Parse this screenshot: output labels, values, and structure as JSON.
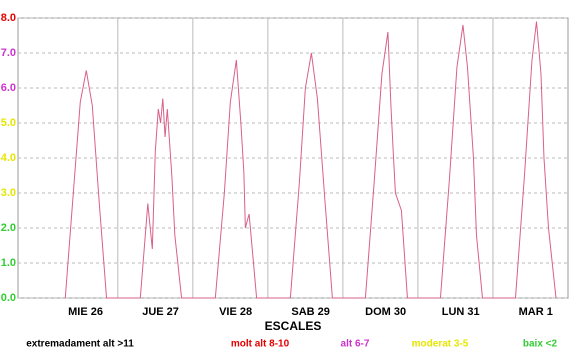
{
  "chart_data": {
    "type": "line",
    "xlabel": "ESCALES",
    "xlim": [
      -0.33,
      7
    ],
    "xticks": [
      {
        "value": 0.57,
        "label": "MIE 26"
      },
      {
        "value": 1.57,
        "label": "JUE 27"
      },
      {
        "value": 2.57,
        "label": "VIE 28"
      },
      {
        "value": 3.57,
        "label": "SAB 29"
      },
      {
        "value": 4.57,
        "label": "DOM 30"
      },
      {
        "value": 5.57,
        "label": "LUN 31"
      },
      {
        "value": 6.57,
        "label": "MAR 1"
      }
    ],
    "xgrid": [
      1,
      2,
      3,
      4,
      5,
      6
    ],
    "ylim": [
      0,
      8
    ],
    "yticks": [
      {
        "value": 0,
        "label": "0.0"
      },
      {
        "value": 1,
        "label": "1.0"
      },
      {
        "value": 2,
        "label": "2.0"
      },
      {
        "value": 3,
        "label": "3.0"
      },
      {
        "value": 4,
        "label": "4.0"
      },
      {
        "value": 5,
        "label": "5.0"
      },
      {
        "value": 6,
        "label": "6.0"
      },
      {
        "value": 7,
        "label": "7.0"
      },
      {
        "value": 8,
        "label": "8.0"
      }
    ],
    "ytick_colors": [
      "#33cc33",
      "#33cc33",
      "#33cc33",
      "#e6e600",
      "#e6e600",
      "#e6e600",
      "#cc33cc",
      "#cc33cc",
      "#e60000"
    ],
    "grid": true,
    "series": [
      {
        "color": "#d8608a",
        "x": [
          0.3,
          0.4,
          0.5,
          0.58,
          0.66,
          0.75,
          0.85,
          1.3,
          1.4,
          1.46,
          1.5,
          1.54,
          1.57,
          1.6,
          1.63,
          1.66,
          1.72,
          1.76,
          1.85,
          2.3,
          2.42,
          2.5,
          2.58,
          2.64,
          2.68,
          2.7,
          2.75,
          2.85,
          3.3,
          3.42,
          3.5,
          3.58,
          3.66,
          3.76,
          3.86,
          4.3,
          4.42,
          4.52,
          4.6,
          4.64,
          4.67,
          4.7,
          4.78,
          4.86,
          5.3,
          5.42,
          5.52,
          5.6,
          5.66,
          5.74,
          5.78,
          5.86,
          6.3,
          6.42,
          6.52,
          6.58,
          6.64,
          6.68,
          6.74,
          6.84
        ],
        "values": [
          0,
          2.8,
          5.6,
          6.5,
          5.5,
          2.8,
          0,
          0,
          2.7,
          1.4,
          4.2,
          5.4,
          5.0,
          5.7,
          4.6,
          5.4,
          3.5,
          1.8,
          0,
          0,
          3.0,
          5.6,
          6.8,
          5.0,
          3.6,
          2.0,
          2.4,
          0,
          0,
          3.3,
          6.0,
          7.0,
          5.7,
          2.8,
          0,
          0,
          3.4,
          6.4,
          7.6,
          5.5,
          4.2,
          3.0,
          2.5,
          0,
          0,
          3.4,
          6.6,
          7.8,
          6.6,
          4.0,
          1.8,
          0,
          0,
          3.5,
          6.8,
          7.9,
          6.4,
          4.0,
          2.0,
          0
        ]
      }
    ],
    "legend": [
      {
        "label": "extremadament alt >11",
        "color": "#000000"
      },
      {
        "label": "molt alt 8-10",
        "color": "#e60000"
      },
      {
        "label": "alt 6-7",
        "color": "#cc33cc"
      },
      {
        "label": "moderat 3-5",
        "color": "#e6e600"
      },
      {
        "label": "baix <2",
        "color": "#33cc33"
      }
    ]
  }
}
